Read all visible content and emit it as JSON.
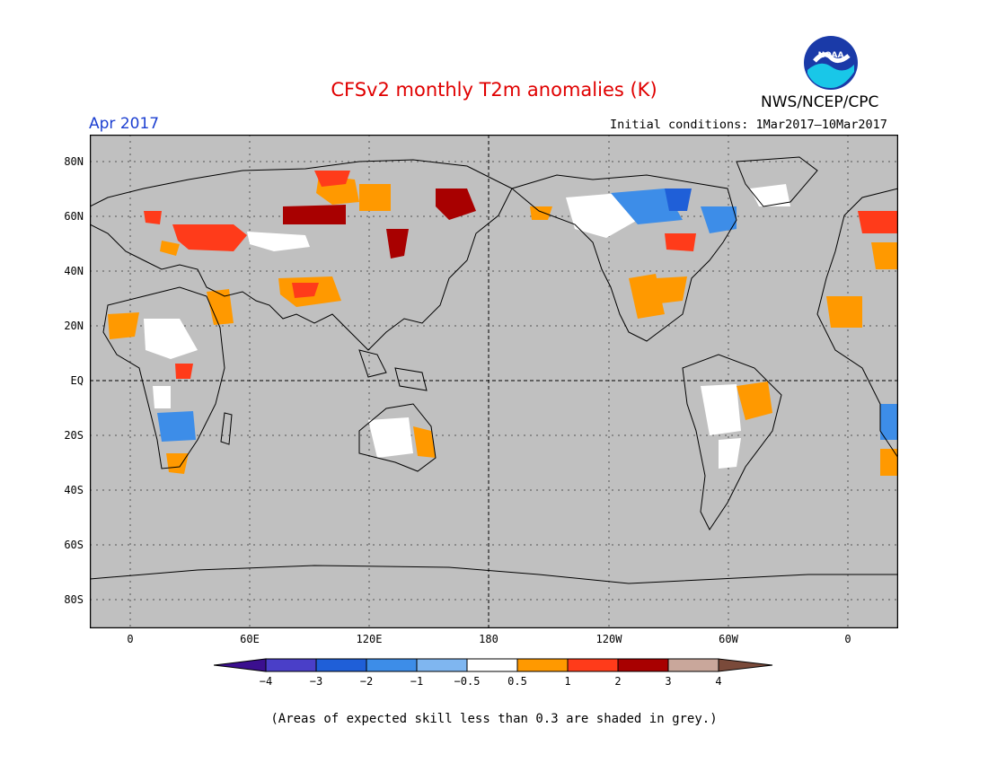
{
  "title": "CFSv2 monthly T2m anomalies (K)",
  "agency": "NWS/NCEP/CPC",
  "logo_text": "NOAA",
  "valid_month": "Apr 2017",
  "initial_conditions": "Initial conditions: 1Mar2017–10Mar2017",
  "lat_labels": [
    "80N",
    "60N",
    "40N",
    "20N",
    "EQ",
    "20S",
    "40S",
    "60S",
    "80S"
  ],
  "lon_labels": [
    "0",
    "60E",
    "120E",
    "180",
    "120W",
    "60W",
    "0"
  ],
  "colorbar": {
    "labels": [
      "−4",
      "−3",
      "−2",
      "−1",
      "−0.5",
      "0.5",
      "1",
      "2",
      "3",
      "4"
    ],
    "colors": [
      "#3b0f8f",
      "#4a3fc8",
      "#1f5fd8",
      "#3d8de8",
      "#7fb6f0",
      "#ffffff",
      "#ff9900",
      "#ff3b1a",
      "#a80000",
      "#c9a79b",
      "#7a4a3a"
    ]
  },
  "map_colors": {
    "land_fill": "#c0c0c0",
    "ocean": "#c0c0c0",
    "coast": "#000000"
  },
  "note": "(Areas of expected skill less than 0.3 are shaded in grey.)"
}
